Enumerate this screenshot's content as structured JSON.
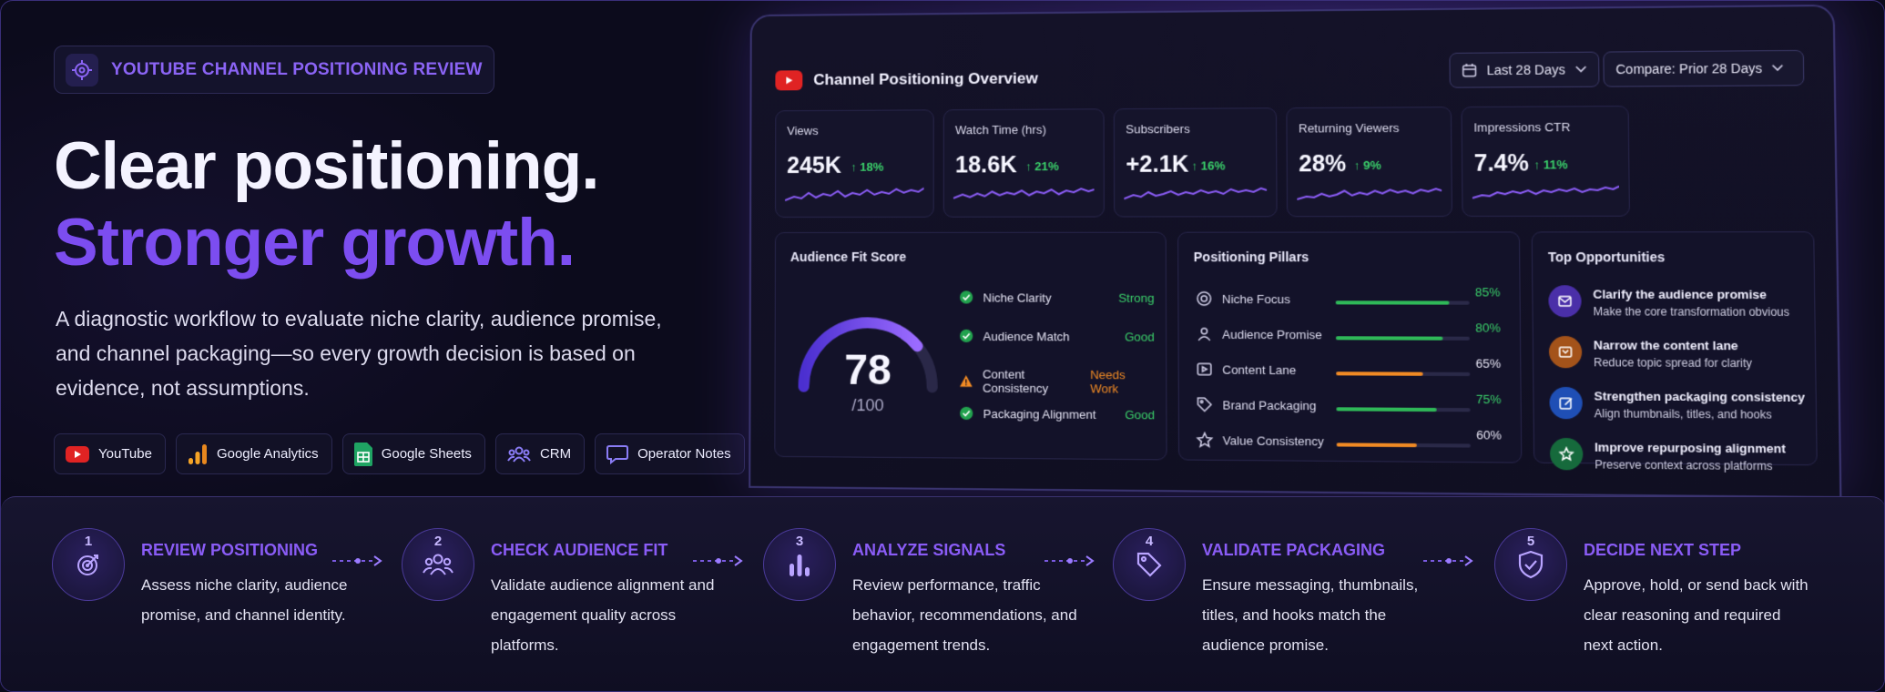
{
  "header": {
    "tag": "YOUTUBE CHANNEL POSITIONING REVIEW",
    "headline1": "Clear positioning.",
    "headline2": "Stronger growth.",
    "description": "A diagnostic workflow to evaluate niche clarity, audience promise, and channel packaging—so every growth decision is based on evidence, not assumptions."
  },
  "tools": [
    {
      "label": "YouTube",
      "icon": "youtube-icon"
    },
    {
      "label": "Google Analytics",
      "icon": "analytics-icon"
    },
    {
      "label": "Google Sheets",
      "icon": "sheets-icon"
    },
    {
      "label": "CRM",
      "icon": "users-icon"
    },
    {
      "label": "Operator Notes",
      "icon": "chat-icon"
    }
  ],
  "dashboard": {
    "title": "Channel Positioning Overview",
    "date_range": "Last 28 Days",
    "compare": "Compare: Prior 28 Days",
    "kpis": [
      {
        "label": "Views",
        "value": "245K",
        "delta": "↑ 18%"
      },
      {
        "label": "Watch Time (hrs)",
        "value": "18.6K",
        "delta": "↑ 21%"
      },
      {
        "label": "Subscribers",
        "value": "+2.1K",
        "delta": "↑ 16%"
      },
      {
        "label": "Returning Viewers",
        "value": "28%",
        "delta": "↑ 9%"
      },
      {
        "label": "Impressions CTR",
        "value": "7.4%",
        "delta": "↑ 11%"
      }
    ],
    "fit": {
      "title": "Audience Fit Score",
      "score": "78",
      "denom": "/100",
      "score_value": 78,
      "items": [
        {
          "label": "Niche Clarity",
          "status": "Strong",
          "color": "#3ad06a"
        },
        {
          "label": "Audience Match",
          "status": "Good",
          "color": "#3ad06a"
        },
        {
          "label": "Content Consistency",
          "status": "Needs Work",
          "color": "#f08a24"
        },
        {
          "label": "Packaging Alignment",
          "status": "Good",
          "color": "#3ad06a"
        }
      ]
    },
    "pillars": {
      "title": "Positioning Pillars",
      "items": [
        {
          "label": "Niche Focus",
          "pct": "85%",
          "value": 85,
          "color": "#2fb858"
        },
        {
          "label": "Audience Promise",
          "pct": "80%",
          "value": 80,
          "color": "#2fb858"
        },
        {
          "label": "Content Lane",
          "pct": "65%",
          "value": 65,
          "color": "#f08a24"
        },
        {
          "label": "Brand Packaging",
          "pct": "75%",
          "value": 75,
          "color": "#2fb858"
        },
        {
          "label": "Value Consistency",
          "pct": "60%",
          "value": 60,
          "color": "#f08a24"
        }
      ]
    },
    "opportunities": {
      "title": "Top Opportunities",
      "items": [
        {
          "title": "Clarify the audience promise",
          "sub": "Make the core transformation obvious"
        },
        {
          "title": "Narrow the content lane",
          "sub": "Reduce topic spread for clarity"
        },
        {
          "title": "Strengthen packaging consistency",
          "sub": "Align thumbnails, titles, and hooks"
        },
        {
          "title": "Improve repurposing alignment",
          "sub": "Preserve context across platforms"
        }
      ]
    }
  },
  "steps": [
    {
      "num": "1",
      "title": "REVIEW POSITIONING",
      "desc": "Assess niche clarity, audience promise, and channel identity."
    },
    {
      "num": "2",
      "title": "CHECK AUDIENCE FIT",
      "desc": "Validate audience alignment and engagement quality across platforms."
    },
    {
      "num": "3",
      "title": "ANALYZE SIGNALS",
      "desc": "Review performance, traffic behavior, recommendations, and engagement trends."
    },
    {
      "num": "4",
      "title": "VALIDATE PACKAGING",
      "desc": "Ensure messaging, thumbnails, titles, and hooks match the audience promise."
    },
    {
      "num": "5",
      "title": "DECIDE NEXT STEP",
      "desc": "Approve, hold, or send back with clear reasoning and required next action."
    }
  ]
}
